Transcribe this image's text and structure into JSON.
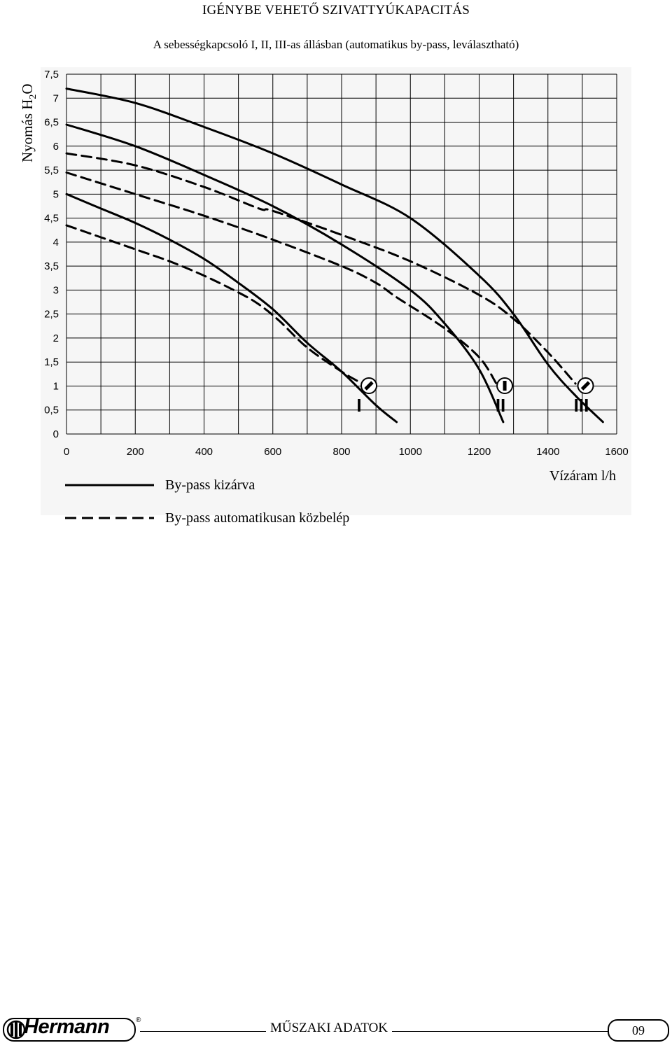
{
  "page": {
    "title": "IGÉNYBE VEHETŐ SZIVATTYÚKAPACITÁS",
    "subtitle": "A sebességkapcsoló I, II, III-as állásban (automatikus by-pass, leválasztható)"
  },
  "chart_data": {
    "type": "line",
    "title": "IGÉNYBE VEHETŐ SZIVATTYÚKAPACITÁS",
    "subtitle": "A sebességkapcsoló I, II, III-as állásban (automatikus by-pass, leválasztható)",
    "ylabel": "Nyomás H2O",
    "ylabel_main": "Nyomás H",
    "ylabel_sub": "2",
    "ylabel_tail": "O",
    "xlabel": "Vízáram l/h",
    "xlim": [
      0,
      1600
    ],
    "ylim": [
      0,
      7.5
    ],
    "grid": true,
    "x_ticks": [
      "0",
      "200",
      "400",
      "600",
      "800",
      "1000",
      "1200",
      "1400",
      "1600"
    ],
    "y_ticks": [
      "0",
      "0,5",
      "1",
      "1,5",
      "2",
      "2,5",
      "3",
      "3,5",
      "4",
      "4,5",
      "5",
      "5,5",
      "6",
      "6,5",
      "7",
      "7,5"
    ],
    "series": [
      {
        "name": "I – By-pass kizárva",
        "speed": "I",
        "style": "solid",
        "x": [
          0,
          100,
          200,
          300,
          400,
          500,
          600,
          700,
          800,
          900,
          960
        ],
        "y": [
          5.0,
          4.7,
          4.4,
          4.05,
          3.65,
          3.15,
          2.6,
          1.9,
          1.3,
          0.6,
          0.25
        ]
      },
      {
        "name": "I – By-pass automatikusan közbelép",
        "speed": "I",
        "style": "dashed",
        "x": [
          0,
          100,
          200,
          300,
          400,
          500,
          560,
          620,
          700,
          800,
          860
        ],
        "y": [
          4.35,
          4.1,
          3.85,
          3.6,
          3.3,
          2.95,
          2.7,
          2.35,
          1.8,
          1.3,
          1.05
        ]
      },
      {
        "name": "II – By-pass kizárva",
        "speed": "II",
        "style": "solid",
        "x": [
          0,
          200,
          400,
          600,
          800,
          1000,
          1100,
          1200,
          1270
        ],
        "y": [
          6.45,
          6.0,
          5.4,
          4.75,
          3.95,
          3.0,
          2.3,
          1.35,
          0.25
        ]
      },
      {
        "name": "II – By-pass automatikusan közbelép",
        "speed": "II",
        "style": "dashed",
        "x": [
          0,
          200,
          400,
          600,
          800,
          900,
          960,
          1100,
          1200,
          1250
        ],
        "y": [
          5.45,
          5.0,
          4.55,
          4.05,
          3.5,
          3.15,
          2.85,
          2.2,
          1.6,
          1.05
        ]
      },
      {
        "name": "III – By-pass kizárva",
        "speed": "III",
        "style": "solid",
        "x": [
          0,
          200,
          400,
          600,
          800,
          1000,
          1200,
          1300,
          1400,
          1480,
          1560
        ],
        "y": [
          7.2,
          6.9,
          6.4,
          5.85,
          5.2,
          4.5,
          3.3,
          2.5,
          1.45,
          0.8,
          0.25
        ]
      },
      {
        "name": "III – By-pass automatikusan közbelép",
        "speed": "III",
        "style": "dashed",
        "x": [
          0,
          200,
          400,
          560,
          600,
          800,
          1000,
          1200,
          1300,
          1400,
          1480
        ],
        "y": [
          5.85,
          5.6,
          5.15,
          4.7,
          4.65,
          4.15,
          3.6,
          2.9,
          2.4,
          1.7,
          1.05
        ]
      }
    ],
    "speed_markers": [
      {
        "label": "I",
        "x": 855,
        "y": 1.05
      },
      {
        "label": "II",
        "x": 1250,
        "y": 1.05
      },
      {
        "label": "III",
        "x": 1485,
        "y": 1.05
      }
    ],
    "legend": [
      {
        "label": "By-pass kizárva",
        "style": "solid"
      },
      {
        "label": "By-pass automatikusan közbelép",
        "style": "dashed"
      }
    ]
  },
  "footer": {
    "brand": "Hermann",
    "registered": "®",
    "section_title": "MŰSZAKI ADATOK",
    "page_number": "09"
  }
}
